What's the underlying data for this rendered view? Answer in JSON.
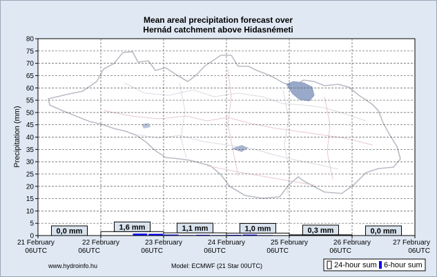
{
  "chart_data": {
    "type": "bar",
    "title": "Mean areal precipitation forecast over",
    "subtitle": "Hernád catchment above Hidasnémeti",
    "ylabel": "Precipitation (mm)",
    "ylim": [
      0,
      80
    ],
    "y_ticks": [
      0,
      5,
      10,
      15,
      20,
      25,
      30,
      35,
      40,
      45,
      50,
      55,
      60,
      65,
      70,
      75,
      80
    ],
    "x_ticks": [
      {
        "date": "21 February",
        "time": "06UTC"
      },
      {
        "date": "22 February",
        "time": "06UTC"
      },
      {
        "date": "23 February",
        "time": "06UTC"
      },
      {
        "date": "24 February",
        "time": "06UTC"
      },
      {
        "date": "25 February",
        "time": "06UTC"
      },
      {
        "date": "26 February",
        "time": "06UTC"
      },
      {
        "date": "27 February",
        "time": "06UTC"
      }
    ],
    "grid": true,
    "daily_sums": [
      {
        "label": "0,0 mm",
        "value": 0.0
      },
      {
        "label": "1,6 mm",
        "value": 1.6
      },
      {
        "label": "1,1 mm",
        "value": 1.1
      },
      {
        "label": "1,0 mm",
        "value": 1.0
      },
      {
        "label": "0,3 mm",
        "value": 0.3
      },
      {
        "label": "0,0 mm",
        "value": 0.0
      }
    ],
    "six_hour_sums": [
      0.0,
      0.0,
      0.0,
      0.0,
      0.0,
      0.1,
      0.8,
      0.7,
      0.4,
      0.2,
      0.3,
      0.2,
      0.3,
      0.4,
      0.2,
      0.1,
      0.1,
      0.1,
      0.1,
      0.0,
      0.0,
      0.0,
      0.0,
      0.0
    ],
    "legend": [
      {
        "name": "24-hour sum",
        "color": "#ffffff"
      },
      {
        "name": "6-hour sum",
        "color": "#0000ff"
      }
    ],
    "legend_placement": "bottom-right"
  },
  "footer": {
    "website": "www.hydroinfo.hu",
    "model": "Model: ECMWF (21  Star 00UTC)"
  },
  "colors": {
    "background": "#dfe8f3",
    "plot_area": "#ffffff",
    "six_hour_bar": "#0000ff",
    "label_box": "#d9e3ee"
  },
  "background_image": "Hernád catchment map"
}
